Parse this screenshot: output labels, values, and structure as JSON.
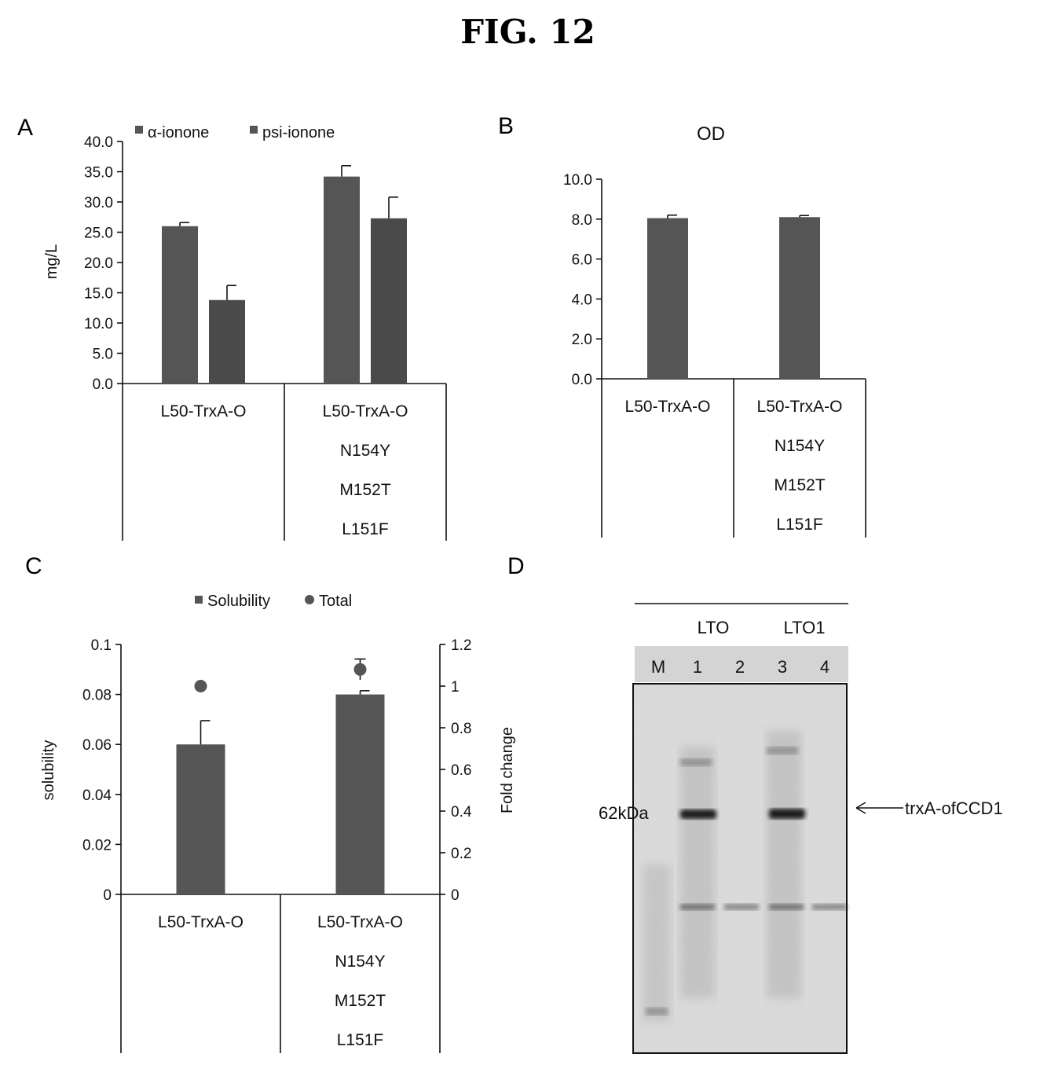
{
  "figure_title": "FIG. 12",
  "colors": {
    "bar": "#555555",
    "bar_dark": "#4a4a4a",
    "axis": "#111111",
    "marker": "#555555"
  },
  "chart_data": [
    {
      "panel": "A",
      "type": "bar",
      "title": "",
      "ylabel": "mg/L",
      "ylim": [
        0,
        40
      ],
      "yticks": [
        "0.0",
        "5.0",
        "10.0",
        "15.0",
        "20.0",
        "25.0",
        "30.0",
        "35.0",
        "40.0"
      ],
      "legend_position": "top",
      "categories": [
        [
          "L50-TrxA-O"
        ],
        [
          "L50-TrxA-O",
          "N154Y",
          "M152T",
          "L151F"
        ]
      ],
      "series": [
        {
          "name": "α-ionone",
          "values": [
            26.0,
            34.2
          ],
          "errors": [
            0.6,
            1.8
          ]
        },
        {
          "name": "psi-ionone",
          "values": [
            13.8,
            27.3
          ],
          "errors": [
            2.4,
            3.5
          ]
        }
      ]
    },
    {
      "panel": "B",
      "type": "bar",
      "title": "OD",
      "ylabel": "",
      "ylim": [
        0,
        10
      ],
      "yticks": [
        "0.0",
        "2.0",
        "4.0",
        "6.0",
        "8.0",
        "10.0"
      ],
      "categories": [
        [
          "L50-TrxA-O"
        ],
        [
          "L50-TrxA-O",
          "N154Y",
          "M152T",
          "L151F"
        ]
      ],
      "series": [
        {
          "values": [
            8.05,
            8.1
          ],
          "errors": [
            0.15,
            0.08
          ]
        }
      ]
    },
    {
      "panel": "C",
      "type": "bar",
      "title": "",
      "ylabel": "solubility",
      "ylabel_right": "Fold change",
      "ylim": [
        0,
        0.1
      ],
      "ylim_right": [
        0,
        1.2
      ],
      "yticks": [
        "0",
        "0.02",
        "0.04",
        "0.06",
        "0.08",
        "0.1"
      ],
      "yticks_right": [
        "0",
        "0.2",
        "0.4",
        "0.6",
        "0.8",
        "1",
        "1.2"
      ],
      "legend_position": "top",
      "categories": [
        [
          "L50-TrxA-O"
        ],
        [
          "L50-TrxA-O",
          "N154Y",
          "M152T",
          "L151F"
        ]
      ],
      "series": [
        {
          "name": "Solubility",
          "axis": "left",
          "values": [
            0.06,
            0.08
          ],
          "errors": [
            0.0095,
            0.0015
          ]
        },
        {
          "name": "Total",
          "axis": "right",
          "marker": "circle",
          "values": [
            1.0,
            1.08
          ],
          "errors": [
            0.0,
            0.05
          ]
        }
      ]
    }
  ],
  "gel": {
    "panel": "D",
    "groups": [
      "LTO",
      "LTO1"
    ],
    "lanes": [
      "M",
      "1",
      "2",
      "3",
      "4"
    ],
    "marker_label": "62kDa",
    "band_label": "trxA-ofCCD1"
  }
}
